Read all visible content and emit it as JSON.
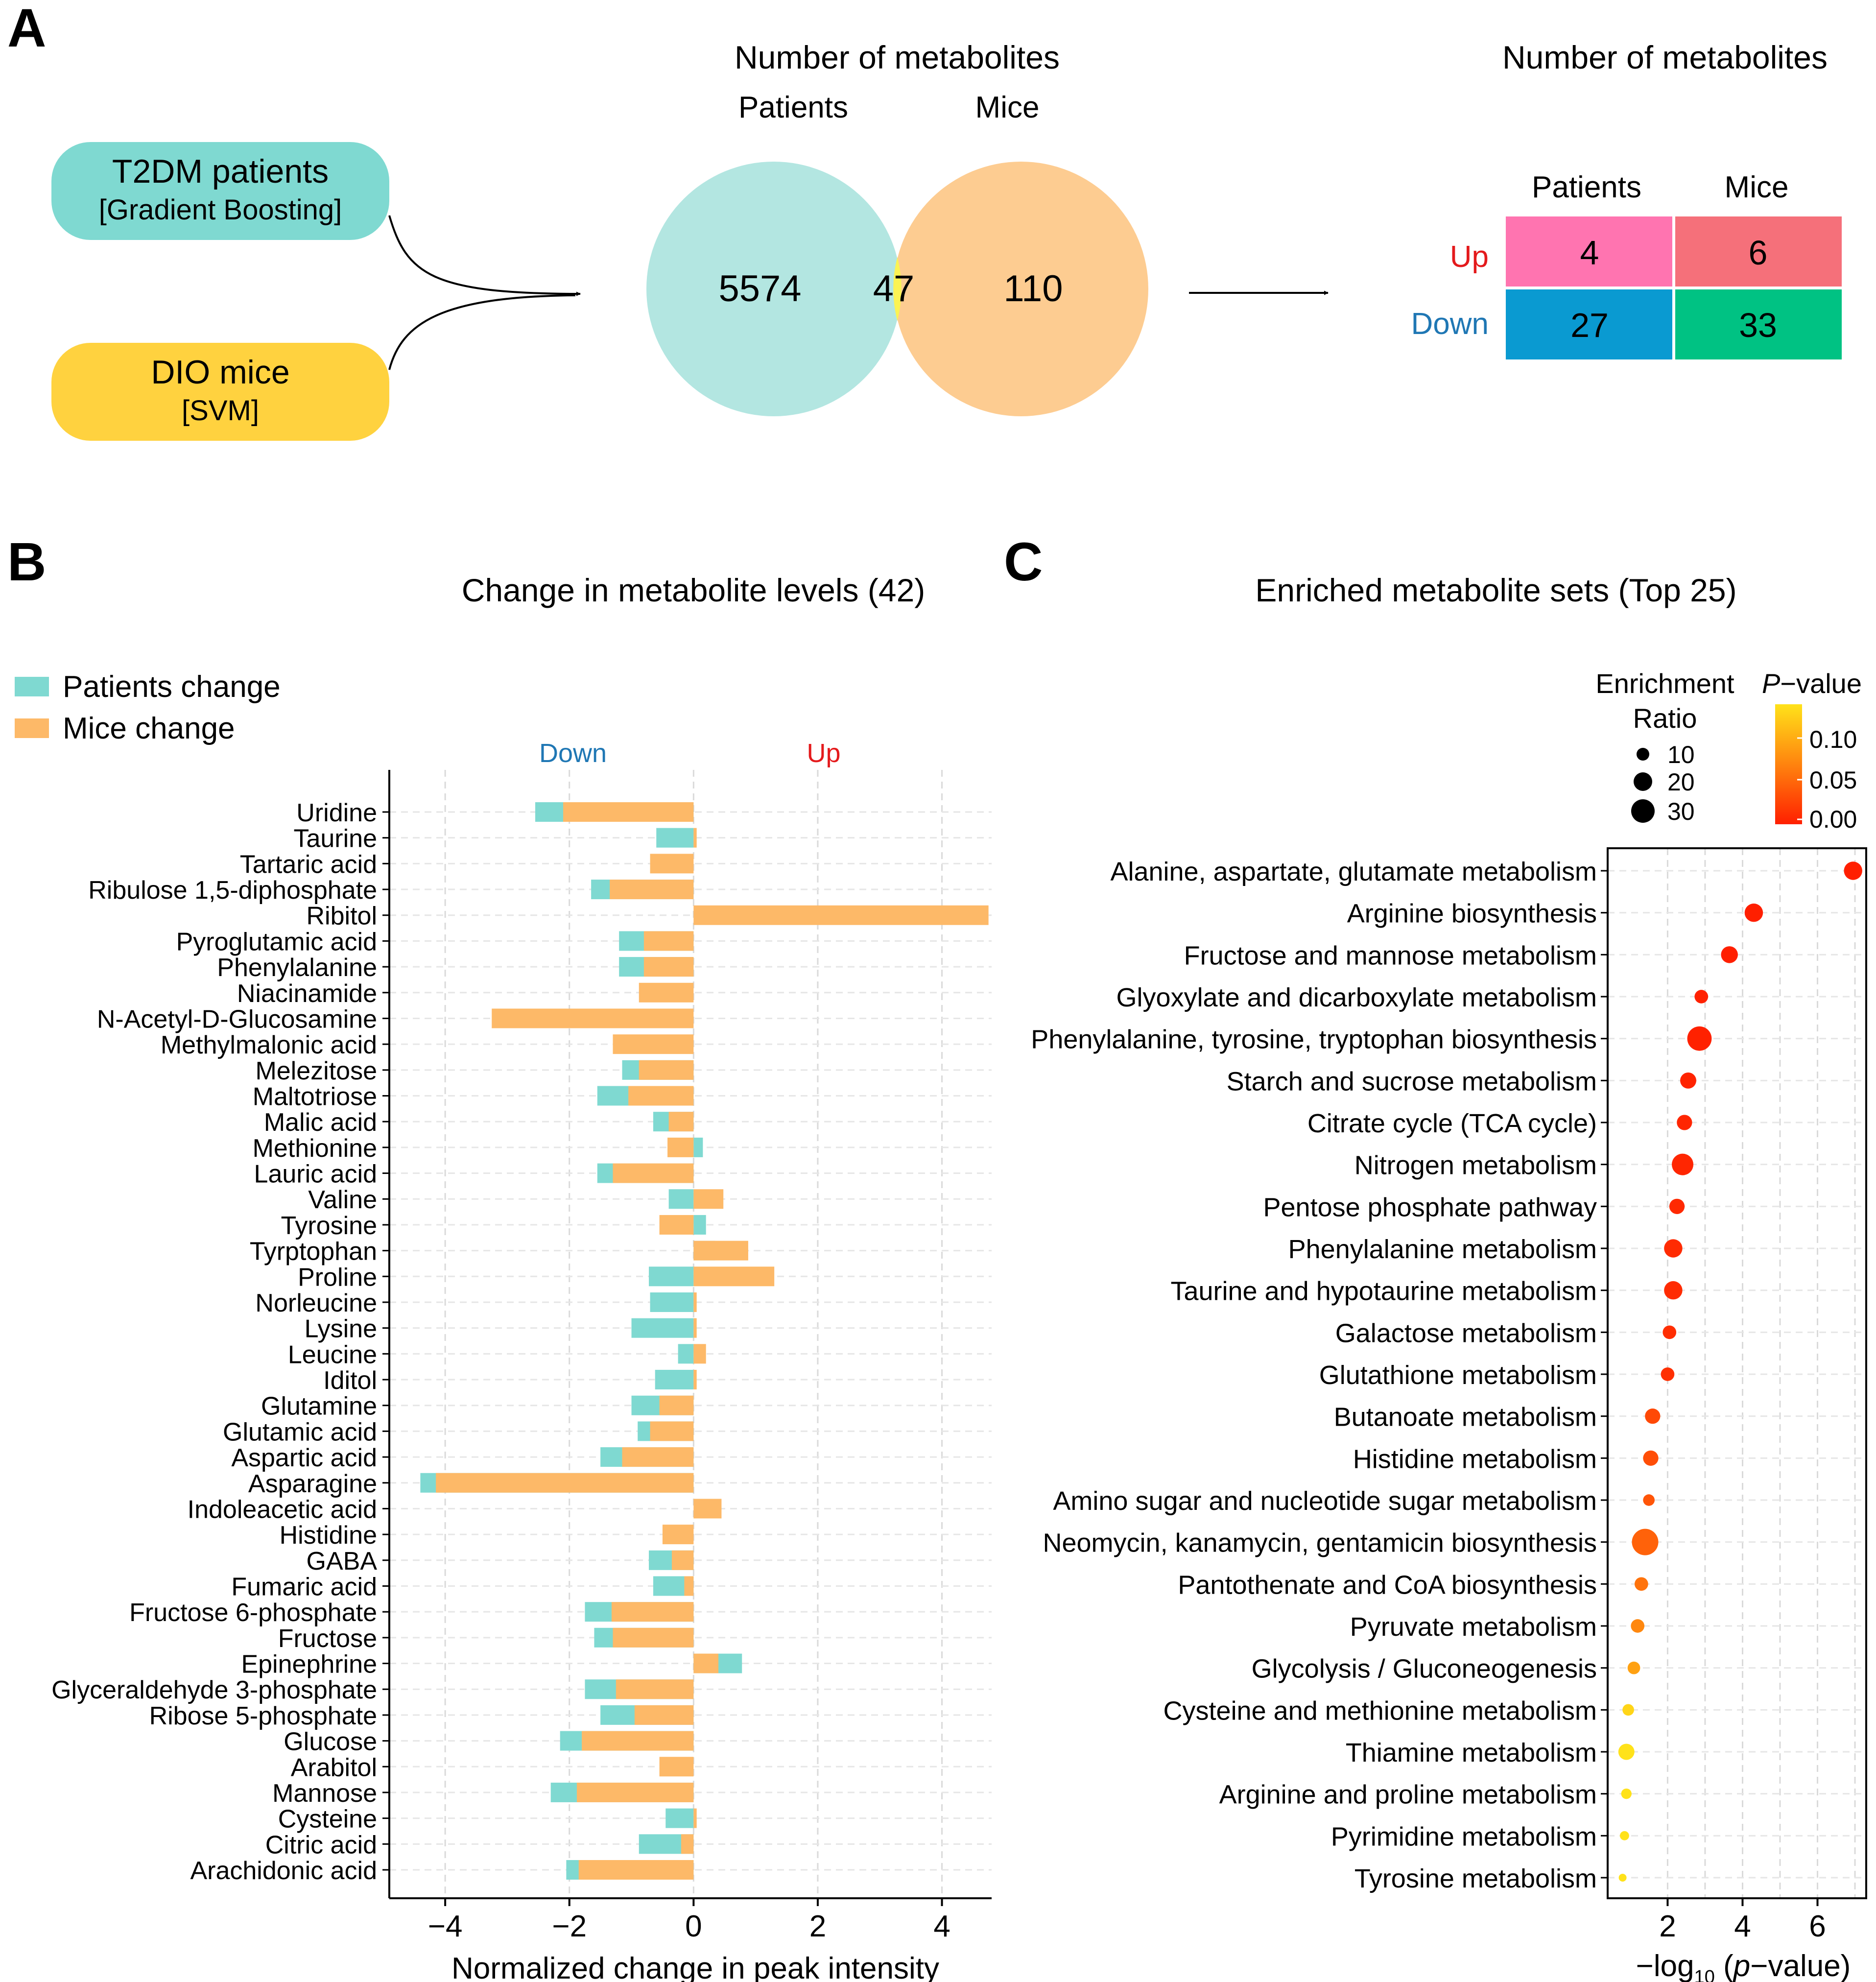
{
  "panels": {
    "a": {
      "label": "A",
      "input_top": {
        "title": "T2DM patients",
        "method": "[Gradient Boosting]"
      },
      "input_bottom": {
        "title": "DIO mice",
        "method": "[SVM]"
      },
      "venn_title": "Number of metabolites",
      "venn_left_label": "Patients",
      "venn_right_label": "Mice",
      "venn_left_count": "5574",
      "venn_overlap_count": "47",
      "venn_right_count": "110",
      "table_title": "Number of metabolites",
      "table_col_patients": "Patients",
      "table_col_mice": "Mice",
      "table_row_up": "Up",
      "table_row_down": "Down",
      "up_patients": "4",
      "up_mice": "6",
      "down_patients": "27",
      "down_mice": "33"
    },
    "b": {
      "label": "B",
      "title": "Change in metabolite levels (42)",
      "legend_patients": "Patients change",
      "legend_mice": "Mice change",
      "down_label": "Down",
      "up_label": "Up",
      "xlabel": "Normalized change in peak intensity"
    },
    "c": {
      "label": "C",
      "title": "Enriched metabolite sets (Top 25)",
      "size_legend_title_1": "Enrichment",
      "size_legend_title_2": "Ratio",
      "size_legend_values": [
        "10",
        "20",
        "30"
      ],
      "color_legend_title_italic": "P",
      "color_legend_title_rest": "−value",
      "color_legend_ticks": [
        "0.10",
        "0.05",
        "0.00"
      ],
      "xlabel_prefix": "−log",
      "xlabel_sub": "10",
      "xlabel_open": " (",
      "xlabel_italic": "p",
      "xlabel_rest": "−value)"
    }
  },
  "colors": {
    "teal": "#7fd9d1",
    "teal_light": "#b3e6e1",
    "orange": "#fdb968",
    "orange_light": "#fdcc91",
    "yellow": "#ffd23f",
    "venn_overlap": "#fbf353",
    "up_patients": "#ff74b0",
    "up_mice": "#f5707a",
    "down_patients": "#0a9ad1",
    "down_mice": "#00c283",
    "up_text": "#e41a1c",
    "down_text": "#1f77b4"
  },
  "chart_data": [
    {
      "type": "bar",
      "title": "Change in metabolite levels (42)",
      "xlabel": "Normalized change in peak intensity",
      "xlim": [
        -4.9,
        4.8
      ],
      "xticks": [
        "−4",
        "−2",
        "0",
        "2",
        "4"
      ],
      "tick_values": [
        -4,
        -2,
        0,
        2,
        4
      ],
      "series_names": [
        "Patients change",
        "Mice change"
      ],
      "categories": [
        "Uridine",
        "Taurine",
        "Tartaric acid",
        "Ribulose 1,5-diphosphate",
        "Ribitol",
        "Pyroglutamic acid",
        "Phenylalanine",
        "Niacinamide",
        "N-Acetyl-D-Glucosamine",
        "Methylmalonic acid",
        "Melezitose",
        "Maltotriose",
        "Malic acid",
        "Methionine",
        "Lauric acid",
        "Valine",
        "Tyrosine",
        "Tyrptophan",
        "Proline",
        "Norleucine",
        "Lysine",
        "Leucine",
        "Iditol",
        "Glutamine",
        "Glutamic acid",
        "Aspartic acid",
        "Asparagine",
        "Indoleacetic acid",
        "Histidine",
        "GABA",
        "Fumaric acid",
        "Fructose 6-phosphate",
        "Fructose",
        "Epinephrine",
        "Glyceraldehyde 3-phosphate",
        "Ribose 5-phosphate",
        "Glucose",
        "Arabitol",
        "Mannose",
        "Cysteine",
        "Citric acid",
        "Arachidonic acid"
      ],
      "patients": [
        -2.55,
        -0.6,
        0,
        -1.65,
        0,
        -1.2,
        -1.2,
        0,
        0,
        0,
        -1.15,
        -1.55,
        -0.65,
        0.15,
        -1.55,
        -0.4,
        0.2,
        0.35,
        -0.72,
        -0.7,
        -1.0,
        -0.25,
        -0.62,
        -1.0,
        -0.9,
        -1.5,
        -4.4,
        0,
        0,
        -0.72,
        -0.65,
        -1.75,
        -1.6,
        0.78,
        -1.75,
        -1.5,
        -2.15,
        0,
        -2.3,
        -0.45,
        -0.88,
        -2.05
      ],
      "mice": [
        -2.1,
        0.05,
        -0.7,
        -1.35,
        4.75,
        -0.8,
        -0.8,
        -0.88,
        -3.25,
        -1.3,
        -0.88,
        -1.05,
        -0.4,
        -0.42,
        -1.3,
        0.48,
        -0.55,
        0.88,
        1.3,
        0.05,
        0.05,
        0.2,
        0.05,
        -0.55,
        -0.7,
        -1.15,
        -4.15,
        0.45,
        -0.5,
        -0.35,
        -0.15,
        -1.32,
        -1.3,
        0.4,
        -1.25,
        -0.95,
        -1.8,
        -0.55,
        -1.88,
        0.05,
        -0.2,
        -1.85
      ]
    },
    {
      "type": "scatter",
      "title": "Enriched metabolite sets (Top 25)",
      "xlabel": "−log10 (p−value)",
      "xlim": [
        0.4,
        7.3
      ],
      "xticks": [
        "2",
        "4",
        "6"
      ],
      "tick_values": [
        2,
        4,
        6
      ],
      "categories": [
        "Alanine, aspartate, glutamate metabolism",
        "Arginine biosynthesis",
        "Fructose and mannose metabolism",
        "Glyoxylate and dicarboxylate metabolism",
        "Phenylalanine, tyrosine, tryptophan biosynthesis",
        "Starch and sucrose metabolism",
        "Citrate cycle (TCA cycle)",
        "Nitrogen metabolism",
        "Pentose phosphate pathway",
        "Phenylalanine metabolism",
        "Taurine and hypotaurine metabolism",
        "Galactose metabolism",
        "Glutathione metabolism",
        "Butanoate metabolism",
        "Histidine metabolism",
        "Amino sugar and nucleotide sugar metabolism",
        "Neomycin, kanamycin, gentamicin biosynthesis",
        "Pantothenate and CoA biosynthesis",
        "Pyruvate metabolism",
        "Glycolysis / Gluconeogenesis",
        "Cysteine and methionine metabolism",
        "Thiamine metabolism",
        "Arginine and proline metabolism",
        "Pyrimidine metabolism",
        "Tyrosine metabolism"
      ],
      "x": [
        6.95,
        4.3,
        3.65,
        2.9,
        2.85,
        2.55,
        2.45,
        2.4,
        2.25,
        2.15,
        2.15,
        2.05,
        2.0,
        1.6,
        1.55,
        1.5,
        1.4,
        1.3,
        1.2,
        1.1,
        0.95,
        0.9,
        0.9,
        0.85,
        0.8
      ],
      "enrichment_ratio": [
        14,
        14,
        12,
        8,
        24,
        11,
        10,
        19,
        10,
        14,
        14,
        8,
        8,
        10,
        10,
        6,
        28,
        8,
        8,
        7,
        6,
        11,
        5,
        4,
        3
      ],
      "p_value": [
        0.0,
        0.0,
        0.0,
        0.001,
        0.001,
        0.003,
        0.004,
        0.004,
        0.006,
        0.007,
        0.007,
        0.009,
        0.01,
        0.025,
        0.028,
        0.032,
        0.04,
        0.05,
        0.063,
        0.079,
        0.112,
        0.126,
        0.126,
        0.141,
        0.158
      ],
      "size_legend": [
        10,
        20,
        30
      ],
      "color_range": [
        0.0,
        0.12
      ]
    }
  ]
}
